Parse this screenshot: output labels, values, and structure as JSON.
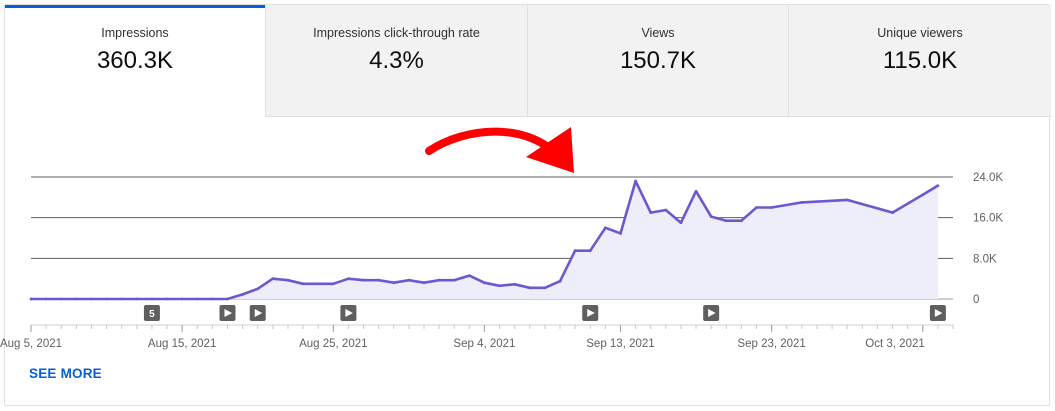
{
  "tabs": [
    {
      "label": "Impressions",
      "value": "360.3K"
    },
    {
      "label": "Impressions click-through rate",
      "value": "4.3%"
    },
    {
      "label": "Views",
      "value": "150.7K"
    },
    {
      "label": "Unique viewers",
      "value": "115.0K"
    }
  ],
  "see_more_label": "SEE MORE",
  "colors": {
    "line": "#6a5acd",
    "fill": "#eeedfa",
    "accent": "#065fd4",
    "arrow": "#ff0000"
  },
  "chart_data": {
    "type": "area",
    "ylim": [
      0,
      24000
    ],
    "yticks": [
      {
        "value": 0,
        "label": "0"
      },
      {
        "value": 8000,
        "label": "8.0K"
      },
      {
        "value": 16000,
        "label": "16.0K"
      },
      {
        "value": 24000,
        "label": "24.0K"
      }
    ],
    "xlim": [
      "2021-08-05",
      "2021-10-05"
    ],
    "xticks": [
      {
        "date": "2021-08-05",
        "label": "Aug 5, 2021"
      },
      {
        "date": "2021-08-15",
        "label": "Aug 15, 2021"
      },
      {
        "date": "2021-08-25",
        "label": "Aug 25, 2021"
      },
      {
        "date": "2021-09-04",
        "label": "Sep 4, 2021"
      },
      {
        "date": "2021-09-13",
        "label": "Sep 13, 2021"
      },
      {
        "date": "2021-09-23",
        "label": "Sep 23, 2021"
      },
      {
        "date": "2021-10-03",
        "label": "Oct 3, 2021"
      }
    ],
    "series": [
      {
        "x": [
          "2021-08-05",
          "2021-08-06",
          "2021-08-07",
          "2021-08-08",
          "2021-08-09",
          "2021-08-10",
          "2021-08-11",
          "2021-08-12",
          "2021-08-13",
          "2021-08-14",
          "2021-08-15",
          "2021-08-16",
          "2021-08-17",
          "2021-08-18",
          "2021-08-19",
          "2021-08-20",
          "2021-08-21",
          "2021-08-22",
          "2021-08-23",
          "2021-08-24",
          "2021-08-25",
          "2021-08-26",
          "2021-08-27",
          "2021-08-28",
          "2021-08-29",
          "2021-08-30",
          "2021-08-31",
          "2021-09-01",
          "2021-09-02",
          "2021-09-03",
          "2021-09-04",
          "2021-09-05",
          "2021-09-06",
          "2021-09-07",
          "2021-09-08",
          "2021-09-09",
          "2021-09-10",
          "2021-09-11",
          "2021-09-12",
          "2021-09-13",
          "2021-09-14",
          "2021-09-15",
          "2021-09-16",
          "2021-09-17",
          "2021-09-18",
          "2021-09-19",
          "2021-09-20",
          "2021-09-21",
          "2021-09-22",
          "2021-09-23",
          "2021-09-25",
          "2021-09-28",
          "2021-10-01",
          "2021-10-03",
          "2021-10-04"
        ],
        "y": [
          0,
          0,
          0,
          0,
          0,
          0,
          0,
          0,
          0,
          0,
          0,
          0,
          0,
          0,
          900,
          2000,
          4000,
          3700,
          3000,
          3000,
          3000,
          4000,
          3700,
          3700,
          3200,
          3700,
          3200,
          3700,
          3700,
          4600,
          3200,
          2600,
          2900,
          2200,
          2200,
          3500,
          9500,
          9500,
          14000,
          12900,
          23200,
          17000,
          17500,
          15000,
          21200,
          16200,
          15400,
          15400,
          18000,
          18000,
          19000,
          19500,
          17000,
          20500,
          22300
        ]
      }
    ],
    "video_markers": [
      {
        "date": "2021-08-13",
        "label": "5"
      },
      {
        "date": "2021-08-18",
        "label": ""
      },
      {
        "date": "2021-08-20",
        "label": ""
      },
      {
        "date": "2021-08-26",
        "label": ""
      },
      {
        "date": "2021-09-11",
        "label": ""
      },
      {
        "date": "2021-09-19",
        "label": ""
      },
      {
        "date": "2021-10-04",
        "label": ""
      }
    ]
  }
}
